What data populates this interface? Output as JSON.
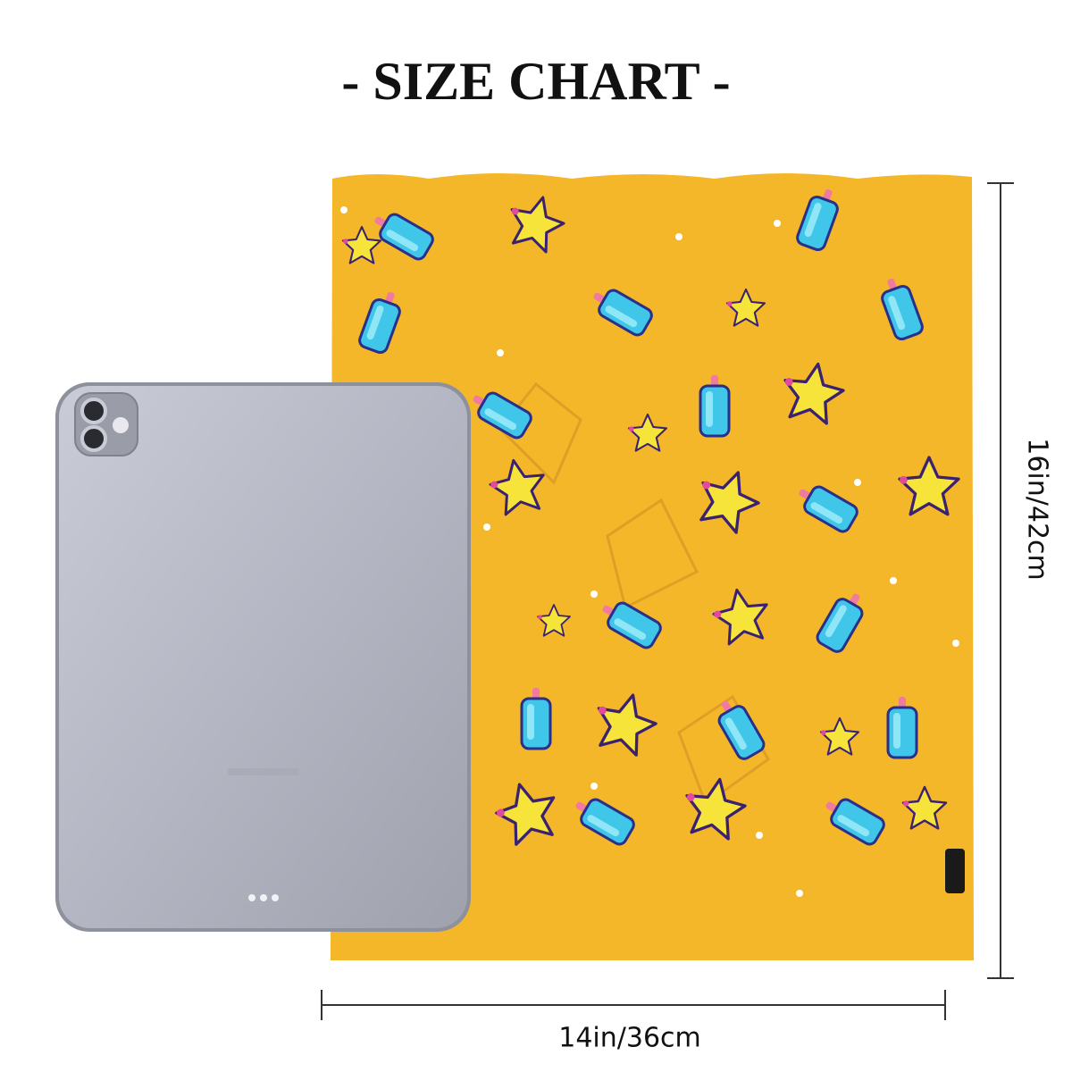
{
  "title": "- SIZE CHART -",
  "height_label": "16in/42cm",
  "width_label": "14in/36cm"
}
